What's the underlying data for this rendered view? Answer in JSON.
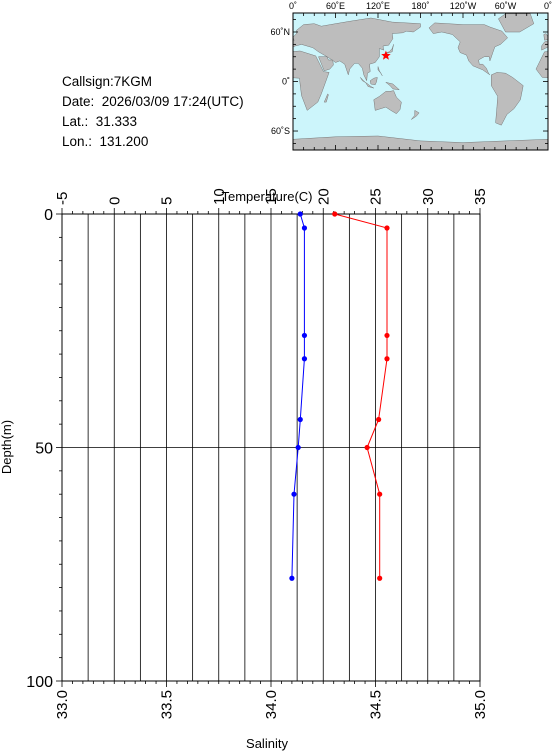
{
  "info": {
    "callsign": "Callsign:7KGM",
    "date": "Date:  2026/03/09 17:24(UTC)",
    "lat": "Lat.:  31.333",
    "lon": "Lon.:  131.200"
  },
  "map": {
    "top_labels": [
      "0˚",
      "60˚E",
      "120˚E",
      "180˚",
      "120˚W",
      "60˚W",
      "0˚"
    ],
    "left_labels": [
      "60˚N",
      "0˚",
      "60˚S"
    ],
    "station": {
      "lat": 31.333,
      "lon": 131.2
    },
    "colors": {
      "ocean": "#ccf5fb",
      "land": "#bdbdbd",
      "marker": "#ff0000"
    }
  },
  "chart_data": {
    "type": "line",
    "ylabel": "Depth(m)",
    "ylim": [
      100,
      0
    ],
    "yticks": [
      0,
      50,
      100
    ],
    "x_top": {
      "label": "Temperature(C)",
      "range": [
        -5,
        35
      ],
      "ticks": [
        -5,
        0,
        5,
        10,
        15,
        20,
        25,
        30,
        35
      ]
    },
    "x_bottom": {
      "label": "Salinity",
      "range": [
        33.0,
        35.0
      ],
      "ticks": [
        "33.0",
        "33.5",
        "34.0",
        "34.5",
        "35.0"
      ]
    },
    "grid": true,
    "series": [
      {
        "color": "#ff0000",
        "axis": "top",
        "points": [
          [
            21.1,
            0
          ],
          [
            26.1,
            3
          ],
          [
            26.1,
            26
          ],
          [
            26.1,
            31
          ],
          [
            25.3,
            44
          ],
          [
            24.2,
            50
          ],
          [
            25.4,
            60
          ],
          [
            25.4,
            78
          ]
        ]
      },
      {
        "color": "#0000ff",
        "axis": "bottom",
        "points": [
          [
            34.14,
            0
          ],
          [
            34.16,
            3
          ],
          [
            34.16,
            26
          ],
          [
            34.16,
            31
          ],
          [
            34.14,
            44
          ],
          [
            34.13,
            50
          ],
          [
            34.11,
            60
          ],
          [
            34.1,
            78
          ]
        ]
      }
    ]
  }
}
